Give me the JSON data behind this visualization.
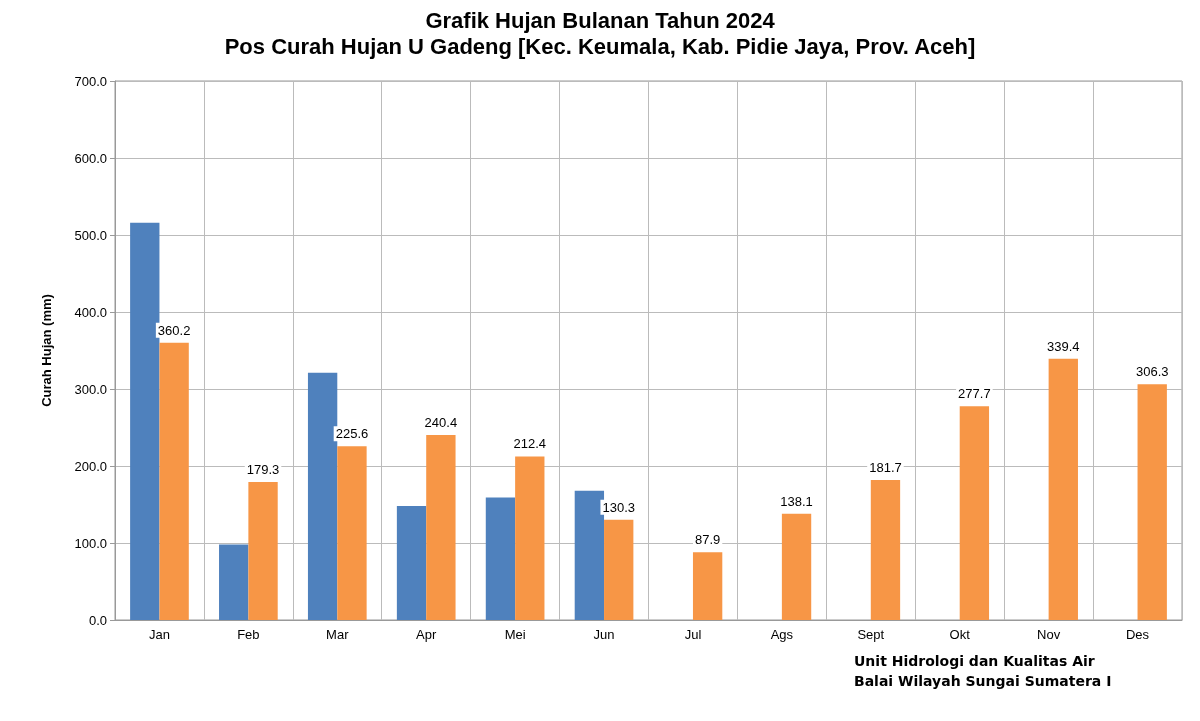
{
  "chart_data": {
    "type": "bar",
    "title": "Grafik Hujan Bulanan Tahun 2024",
    "subtitle": "Pos Curah Hujan U Gadeng [Kec. Keumala, Kab. Pidie Jaya, Prov. Aceh]",
    "ylabel": "Curah Hujan (mm)",
    "categories": [
      "Jan",
      "Feb",
      "Mar",
      "Apr",
      "Mei",
      "Jun",
      "Jul",
      "Ags",
      "Sept",
      "Okt",
      "Nov",
      "Des"
    ],
    "series": [
      {
        "color": "#4f81bd",
        "values": [
          516,
          98,
          321,
          148,
          159,
          168,
          null,
          null,
          null,
          null,
          null,
          null
        ]
      },
      {
        "color": "#f79646",
        "values": [
          360.2,
          179.3,
          225.6,
          240.4,
          212.4,
          130.3,
          87.9,
          138.1,
          181.7,
          277.7,
          339.4,
          306.3
        ],
        "value_labels": [
          "360.2",
          "179.3",
          "225.6",
          "240.4",
          "212.4",
          "130.3",
          "87.9",
          "138.1",
          "181.7",
          "277.7",
          "339.4",
          "306.3"
        ]
      }
    ],
    "ylim": [
      0,
      700
    ],
    "yticks": [
      {
        "value": 0,
        "label": "0.0"
      },
      {
        "value": 100,
        "label": "100.0"
      },
      {
        "value": 200,
        "label": "200.0"
      },
      {
        "value": 300,
        "label": "300.0"
      },
      {
        "value": 400,
        "label": "400.0"
      },
      {
        "value": 500,
        "label": "500.0"
      },
      {
        "value": 600,
        "label": "600.0"
      },
      {
        "value": 700,
        "label": "700.0"
      }
    ],
    "grid": true,
    "annotations": [
      "Unit Hidrologi dan Kualitas Air",
      "Balai Wilayah Sungai Sumatera I"
    ]
  }
}
